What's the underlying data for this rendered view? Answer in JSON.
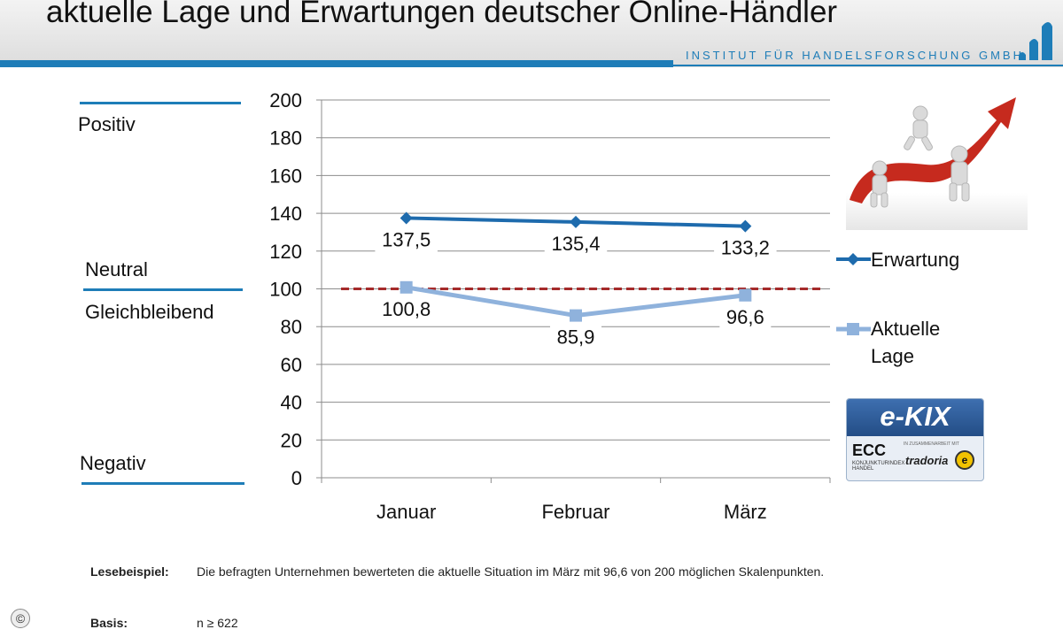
{
  "header": {
    "title": "aktuelle Lage und Erwartungen deutscher Online-Händler",
    "institute": "INSTITUT FÜR HANDELSFORSCHUNG GMBH"
  },
  "scale_labels": {
    "positive": "Positiv",
    "neutral": "Neutral",
    "constant": "Gleichbleibend",
    "negative": "Negativ"
  },
  "badge": {
    "ekix": "e-KIX",
    "ecc": "ECC",
    "ecc_sub": "KONJUNKTURINDEX HANDEL",
    "in_cooperation": "IN ZUSAMMENARBEIT MIT",
    "tradoria": "tradoria",
    "seal": "e"
  },
  "footer": {
    "example_key": "Lesebeispiel:",
    "example_text": "Die befragten Unternehmen bewerteten die aktuelle Situation im März mit  96,6  von 200 möglichen Skalenpunkten.",
    "basis_key": "Basis:",
    "basis_text": "n ≥ 622",
    "copyright": "©"
  },
  "colors": {
    "accent": "#1e7db8",
    "series_expectation": "#1e6bad",
    "series_current": "#8fb2dc",
    "reference": "#a52a2a"
  },
  "chart_data": {
    "type": "line",
    "categories": [
      "Januar",
      "Februar",
      "März"
    ],
    "ylim": [
      0,
      200
    ],
    "yticks": [
      0,
      20,
      40,
      60,
      80,
      100,
      120,
      140,
      160,
      180,
      200
    ],
    "grid": true,
    "legend_position": "right",
    "reference_line": 100,
    "series": [
      {
        "name": "Erwartung",
        "marker": "diamond",
        "values": [
          137.5,
          135.4,
          133.2
        ],
        "labels": [
          "137,5",
          "135,4",
          "133,2"
        ]
      },
      {
        "name": "Aktuelle Lage",
        "marker": "square",
        "values": [
          100.8,
          85.9,
          96.6
        ],
        "labels": [
          "100,8",
          "85,9",
          "96,6"
        ]
      }
    ]
  }
}
